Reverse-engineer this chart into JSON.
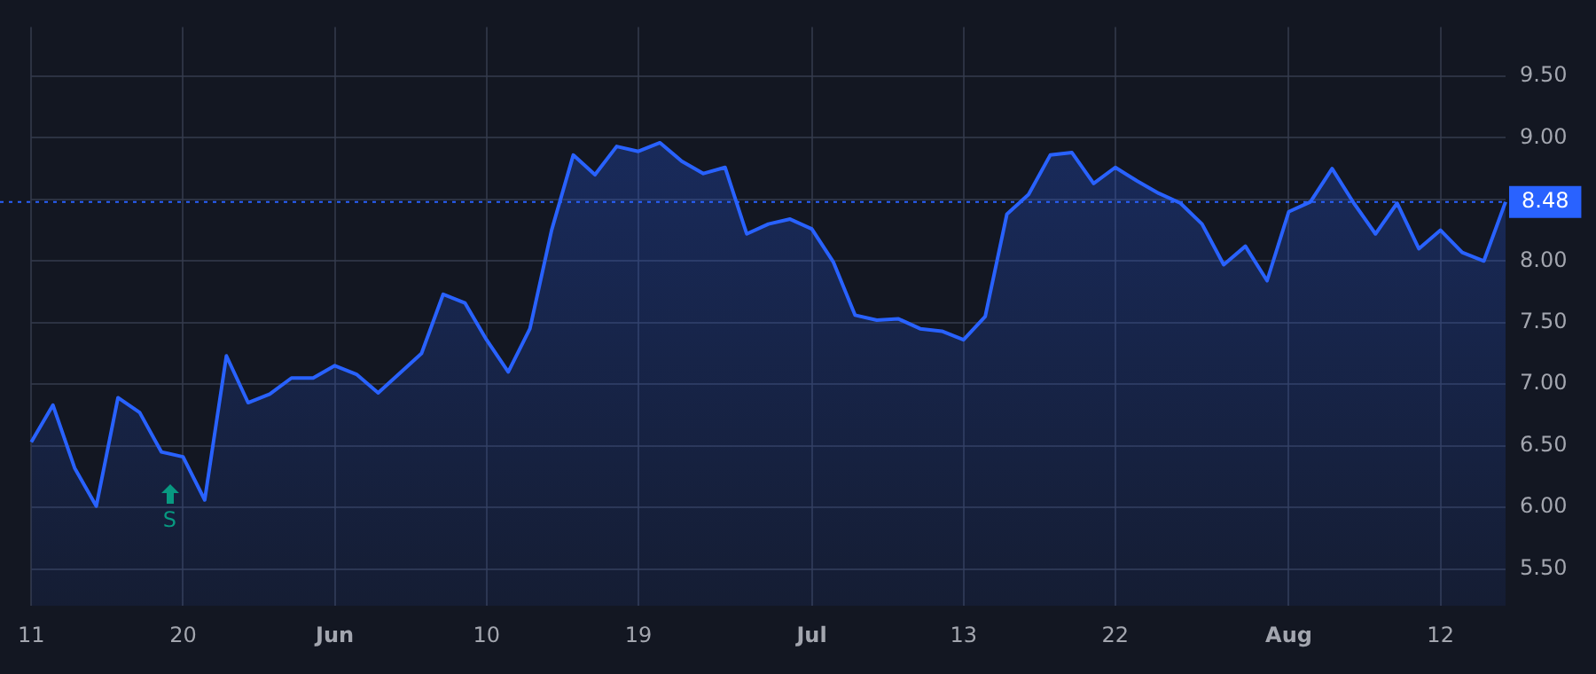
{
  "chart_data": {
    "type": "area",
    "categories": [
      "11",
      null,
      null,
      null,
      null,
      null,
      null,
      "20",
      null,
      null,
      null,
      null,
      null,
      null,
      "Jun",
      null,
      null,
      null,
      null,
      null,
      null,
      "10",
      null,
      null,
      null,
      null,
      null,
      null,
      "19",
      null,
      null,
      null,
      null,
      null,
      null,
      null,
      "Jul",
      null,
      null,
      null,
      null,
      null,
      null,
      "13",
      null,
      null,
      null,
      null,
      null,
      null,
      "22",
      null,
      null,
      null,
      null,
      null,
      null,
      null,
      "Aug",
      null,
      null,
      null,
      null,
      null,
      null,
      "12",
      null,
      null,
      null
    ],
    "series": [
      {
        "color": "#2962ff",
        "values": [
          6.53,
          6.83,
          6.32,
          6.01,
          6.89,
          6.77,
          6.45,
          6.41,
          6.06,
          7.23,
          6.85,
          6.92,
          7.05,
          7.05,
          7.15,
          7.08,
          6.93,
          7.09,
          7.25,
          7.73,
          7.66,
          7.36,
          7.1,
          7.45,
          8.25,
          8.86,
          8.7,
          8.93,
          8.89,
          8.96,
          8.81,
          8.71,
          8.76,
          8.22,
          8.3,
          8.34,
          8.26,
          7.99,
          7.56,
          7.52,
          7.53,
          7.45,
          7.43,
          7.36,
          7.55,
          8.38,
          8.54,
          8.86,
          8.88,
          8.63,
          8.76,
          8.65,
          8.55,
          8.47,
          8.3,
          7.97,
          8.12,
          7.84,
          8.4,
          8.48,
          8.75,
          8.47,
          8.22,
          8.47,
          8.1,
          8.25,
          8.07,
          8.0,
          8.48
        ]
      }
    ],
    "ylim": [
      5.2,
      9.9
    ],
    "yticks": [
      {
        "value": 5.5,
        "label": "5.50"
      },
      {
        "value": 6,
        "label": "6.00"
      },
      {
        "value": 6.5,
        "label": "6.50"
      },
      {
        "value": 7,
        "label": "7.00"
      },
      {
        "value": 7.5,
        "label": "7.50"
      },
      {
        "value": 8,
        "label": "8.00"
      },
      {
        "value": 8.5,
        "label": null
      },
      {
        "value": 9,
        "label": "9.00"
      },
      {
        "value": 9.5,
        "label": "9.50"
      }
    ],
    "ref_lines": [
      {
        "axis": "y",
        "value": 8.48,
        "label": "8.48",
        "color": "#2962ff",
        "line_style": "dotted"
      }
    ],
    "annotations": [
      "S"
    ],
    "grid": true,
    "legend": false,
    "marker": "none",
    "line_style": "solid"
  }
}
